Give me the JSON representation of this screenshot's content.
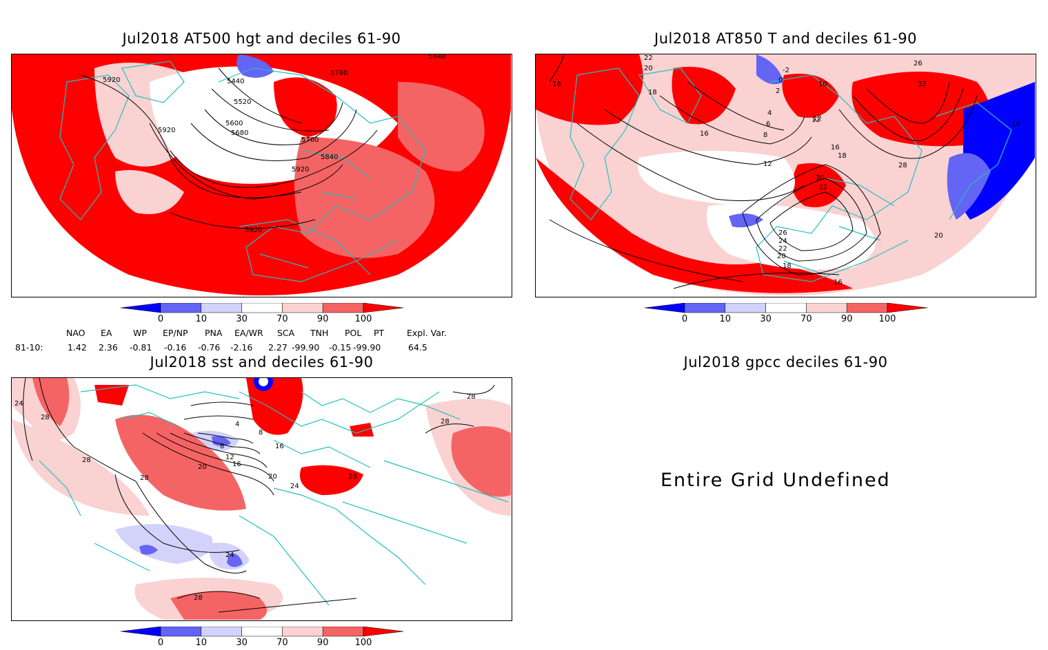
{
  "panels": {
    "hgt": {
      "title": "Jul2018 AT500 hgt and deciles 61-90",
      "contour_labels": [
        "5440",
        "5520",
        "5600",
        "5680",
        "5760",
        "5840",
        "5920",
        "5920",
        "5920",
        "5920",
        "5760",
        "5840"
      ]
    },
    "t850": {
      "title": "Jul2018 AT850 T and deciles 61-90",
      "contour_labels": [
        "16",
        "20",
        "22",
        "18",
        "16",
        "12",
        "8",
        "6",
        "4",
        "-2",
        "0",
        "2",
        "10",
        "12",
        "16",
        "18",
        "28",
        "26",
        "24",
        "22",
        "20",
        "18",
        "16",
        "32",
        "30",
        "26",
        "32",
        "16",
        "20",
        "12"
      ]
    },
    "sst": {
      "title": "Jul2018 sst and deciles 61-90",
      "contour_labels": [
        "24",
        "28",
        "28",
        "28",
        "28",
        "24",
        "28",
        "20",
        "16",
        "12",
        "8",
        "4",
        "8",
        "16",
        "20",
        "24",
        "28",
        "28"
      ]
    },
    "gpcc": {
      "title": "Jul2018 gpcc deciles 61-90",
      "message": "Entire Grid Undefined"
    }
  },
  "colorbar": {
    "tick_labels": [
      "0",
      "10",
      "30",
      "70",
      "90",
      "100"
    ],
    "colors": [
      "#0000ff",
      "#6464f5",
      "#d2d2fa",
      "#ffffff",
      "#fad2d2",
      "#f56464",
      "#ff0000"
    ]
  },
  "indices": {
    "headers": [
      "NAO",
      "EA",
      "WP",
      "EP/NP",
      "PNA",
      "EA/WR",
      "SCA",
      "TNH",
      "POL",
      "PT",
      "Expl. Var."
    ],
    "row_label": "81-10:",
    "values": [
      "1.42",
      "2.36",
      "-0.81",
      "-0.16",
      "-0.76",
      "-2.16",
      "2.27",
      "-99.90",
      "-0.15",
      "-99.90",
      "64.5"
    ]
  },
  "colors": {
    "land_outline": "#20c0c0",
    "frame": "#000000"
  }
}
